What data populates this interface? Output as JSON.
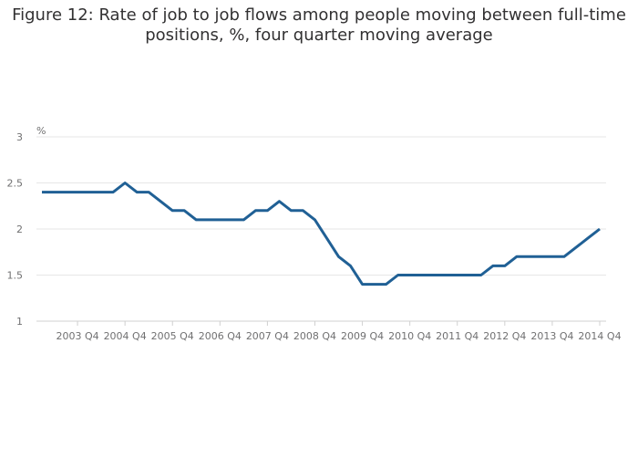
{
  "chart_data": {
    "type": "line",
    "title_line1": "Figure 12: Rate of job to job flows among people moving between full-time",
    "title_line2": "positions, %, four quarter moving average",
    "ylabel": "%",
    "ylim": [
      1,
      3
    ],
    "yticks": [
      "1",
      "1.5",
      "2",
      "2.5",
      "3"
    ],
    "xtick_labels": [
      "2003 Q4",
      "2004 Q4",
      "2005 Q4",
      "2006 Q4",
      "2007 Q4",
      "2008 Q4",
      "2009 Q4",
      "2010 Q4",
      "2011 Q4",
      "2012 Q4",
      "2013 Q4",
      "2014 Q4"
    ],
    "grid": true,
    "line_color": "#206095",
    "series": [
      {
        "values": [
          2.4,
          2.4,
          2.4,
          2.4,
          2.4,
          2.4,
          2.4,
          2.5,
          2.4,
          2.4,
          2.3,
          2.2,
          2.2,
          2.1,
          2.1,
          2.1,
          2.1,
          2.1,
          2.2,
          2.2,
          2.3,
          2.2,
          2.2,
          2.1,
          1.9,
          1.7,
          1.6,
          1.4,
          1.4,
          1.4,
          1.5,
          1.5,
          1.5,
          1.5,
          1.5,
          1.5,
          1.5,
          1.5,
          1.6,
          1.6,
          1.7,
          1.7,
          1.7,
          1.7,
          1.7,
          1.8,
          1.9,
          2.0
        ]
      }
    ]
  }
}
